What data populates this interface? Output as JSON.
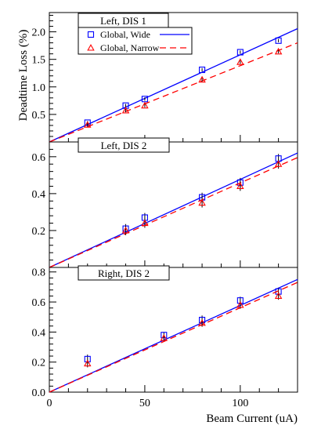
{
  "chart_data": [
    {
      "type": "scatter",
      "title": "Left, DIS 1",
      "ylabel": "Deadtime Loss (%)",
      "xlabel": "",
      "xlim": [
        0,
        130
      ],
      "ylim": [
        0,
        2.35
      ],
      "yticks": [
        0.5,
        1.0,
        1.5,
        2.0
      ],
      "ytick_labels": [
        "0.5",
        "1.0",
        "1.5",
        "2.0"
      ],
      "series": [
        {
          "name": "Global, Wide",
          "color": "#0000ff",
          "marker": "square",
          "line_style": "solid",
          "x": [
            20,
            40,
            50,
            80,
            100,
            120
          ],
          "y": [
            0.35,
            0.66,
            0.78,
            1.31,
            1.63,
            1.84
          ],
          "err": [
            0.03,
            0.03,
            0.03,
            0.03,
            0.03,
            0.03
          ],
          "fit": {
            "slope": 0.01583,
            "intercept": 0.0
          }
        },
        {
          "name": "Global, Narrow",
          "color": "#ff0000",
          "marker": "triangle",
          "line_style": "dashed",
          "x": [
            20,
            40,
            50,
            80,
            100,
            120
          ],
          "y": [
            0.31,
            0.57,
            0.66,
            1.13,
            1.45,
            1.64
          ],
          "err": [
            0.03,
            0.03,
            0.03,
            0.03,
            0.03,
            0.03
          ],
          "fit": {
            "slope": 0.01385,
            "intercept": 0.0
          }
        }
      ]
    },
    {
      "type": "scatter",
      "title": "Left, DIS 2",
      "xlabel": "",
      "ylabel": "",
      "xlim": [
        0,
        130
      ],
      "ylim": [
        0,
        0.68
      ],
      "yticks": [
        0.2,
        0.4,
        0.6
      ],
      "ytick_labels": [
        "0.2",
        "0.4",
        "0.6"
      ],
      "series": [
        {
          "color": "#0000ff",
          "marker": "square",
          "line_style": "solid",
          "x": [
            40,
            50,
            80,
            100,
            120
          ],
          "y": [
            0.21,
            0.27,
            0.38,
            0.46,
            0.59
          ],
          "err": [
            0.025,
            0.025,
            0.025,
            0.025,
            0.025
          ],
          "fit": {
            "slope": 0.00477,
            "intercept": 0.0
          }
        },
        {
          "color": "#ff0000",
          "marker": "triangle",
          "line_style": "dashed",
          "x": [
            40,
            50,
            80,
            100,
            120
          ],
          "y": [
            0.2,
            0.24,
            0.35,
            0.44,
            0.56
          ],
          "err": [
            0.025,
            0.025,
            0.025,
            0.025,
            0.025
          ],
          "fit": {
            "slope": 0.00458,
            "intercept": 0.0
          }
        }
      ]
    },
    {
      "type": "scatter",
      "title": "Right, DIS 2",
      "xlabel": "Beam Current (uA)",
      "ylabel": "",
      "xlim": [
        0,
        130
      ],
      "ylim": [
        0,
        0.83
      ],
      "xticks": [
        0,
        50,
        100
      ],
      "xtick_labels": [
        "0",
        "50",
        "100"
      ],
      "yticks": [
        0.0,
        0.2,
        0.4,
        0.6,
        0.8
      ],
      "ytick_labels": [
        "0.0",
        "0.2",
        "0.4",
        "0.6",
        "0.8"
      ],
      "series": [
        {
          "color": "#0000ff",
          "marker": "square",
          "line_style": "solid",
          "x": [
            20,
            60,
            80,
            100,
            120
          ],
          "y": [
            0.22,
            0.38,
            0.48,
            0.61,
            0.67
          ],
          "err": [
            0.03,
            0.02,
            0.03,
            0.025,
            0.025
          ],
          "fit": {
            "slope": 0.00577,
            "intercept": 0.0
          }
        },
        {
          "color": "#ff0000",
          "marker": "triangle",
          "line_style": "dashed",
          "x": [
            20,
            60,
            80,
            100,
            120
          ],
          "y": [
            0.19,
            0.36,
            0.46,
            0.58,
            0.64
          ],
          "err": [
            0.025,
            0.02,
            0.025,
            0.025,
            0.025
          ],
          "fit": {
            "slope": 0.00562,
            "intercept": 0.0
          }
        }
      ]
    }
  ]
}
